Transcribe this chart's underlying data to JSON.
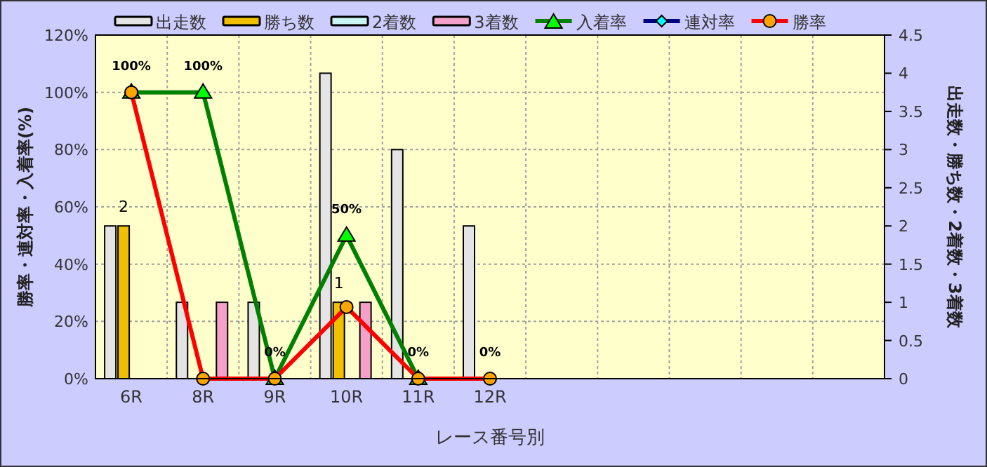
{
  "chart_data": {
    "type": "bar",
    "categories": [
      "6R",
      "8R",
      "9R",
      "10R",
      "11R",
      "12R",
      null,
      null,
      null,
      null,
      null
    ],
    "xlabel": "レース番号別",
    "ylabel": "勝率・連対率・入着率(%)",
    "y2label": "出走数・勝ち数・2着数・3着数",
    "series": [
      {
        "name": "出走数",
        "axis": "y2",
        "color": "#e4e4e4",
        "values": [
          2,
          1,
          1,
          4,
          3,
          2,
          null,
          null,
          null,
          null,
          null
        ]
      },
      {
        "name": "勝ち数",
        "axis": "y2",
        "color": "#f0c000",
        "values": [
          2,
          0,
          0,
          1,
          0,
          0,
          null,
          null,
          null,
          null,
          null
        ],
        "value_labels": [
          "2",
          null,
          null,
          "1",
          null,
          null,
          null,
          null,
          null,
          null,
          null
        ]
      },
      {
        "name": "2着数",
        "axis": "y2",
        "color": "#c8f4f4",
        "values": [
          0,
          0,
          0,
          0,
          0,
          0,
          null,
          null,
          null,
          null,
          null
        ]
      },
      {
        "name": "3着数",
        "axis": "y2",
        "color": "#f4a0c8",
        "values": [
          0,
          1,
          0,
          1,
          0,
          0,
          null,
          null,
          null,
          null,
          null
        ]
      },
      {
        "name": "入着率",
        "type": "line",
        "color": "#008000",
        "marker": "triangle",
        "values": [
          100,
          100,
          0,
          50,
          0,
          null,
          null,
          null,
          null,
          null,
          null
        ],
        "value_labels": [
          "100%",
          "100%",
          "0%",
          "50%",
          "0%",
          null,
          null,
          null,
          null,
          null,
          null
        ]
      },
      {
        "name": "連対率",
        "type": "line",
        "color": "#000080",
        "marker": "diamond",
        "values": [
          null,
          null,
          null,
          null,
          null,
          null,
          null,
          null,
          null,
          null,
          null
        ]
      },
      {
        "name": "勝率",
        "type": "line",
        "color": "#ff0000",
        "marker": "circle",
        "values": [
          100,
          0,
          0,
          25,
          0,
          0,
          null,
          null,
          null,
          null,
          null
        ],
        "value_labels": [
          null,
          null,
          null,
          null,
          null,
          "0%",
          null,
          null,
          null,
          null,
          null
        ]
      }
    ],
    "ylim": [
      0,
      120
    ],
    "yticks": [
      {
        "value": 0,
        "label": "0%"
      },
      {
        "value": 20,
        "label": "20%"
      },
      {
        "value": 40,
        "label": "40%"
      },
      {
        "value": 60,
        "label": "60%"
      },
      {
        "value": 80,
        "label": "80%"
      },
      {
        "value": 100,
        "label": "100%"
      },
      {
        "value": 120,
        "label": "120%"
      }
    ],
    "y2lim": [
      0,
      4.5
    ],
    "y2ticks": [
      0,
      0.5,
      1,
      1.5,
      2,
      2.5,
      3,
      3.5,
      4,
      4.5
    ],
    "grid": true,
    "legend": "top"
  }
}
